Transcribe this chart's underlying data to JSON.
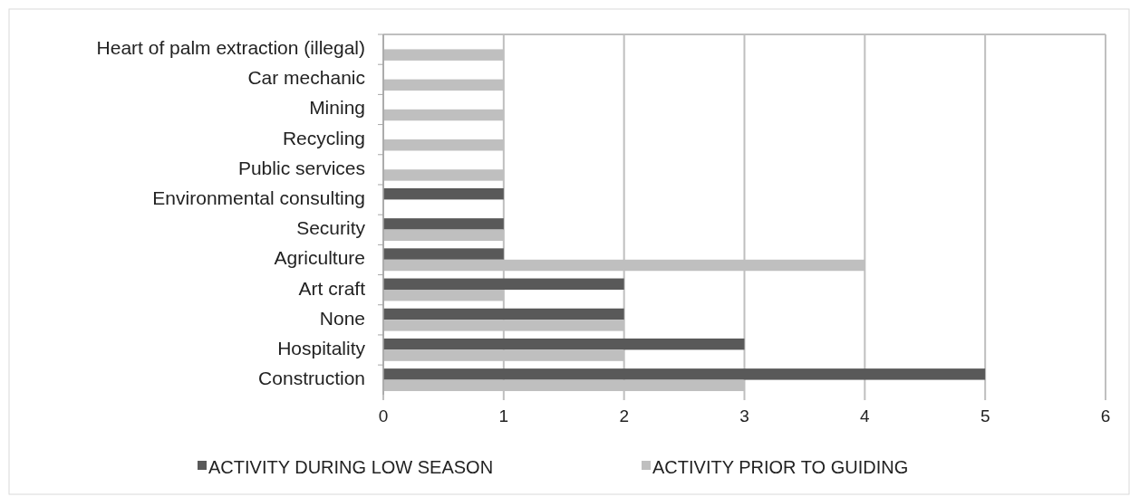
{
  "chart_data": {
    "type": "bar",
    "orientation": "horizontal",
    "categories": [
      "Heart of palm extraction (illegal)",
      "Car mechanic",
      "Mining",
      "Recycling",
      "Public services",
      "Environmental consulting",
      "Security",
      "Agriculture",
      "Art craft",
      "None",
      "Hospitality",
      "Construction"
    ],
    "series": [
      {
        "name": "ACTIVITY DURING LOW SEASON",
        "color": "#595959",
        "values": [
          null,
          null,
          null,
          null,
          null,
          1,
          1,
          1,
          2,
          2,
          3,
          5
        ]
      },
      {
        "name": "ACTIVITY PRIOR TO GUIDING",
        "color": "#bfbfbf",
        "values": [
          1,
          1,
          1,
          1,
          1,
          null,
          1,
          4,
          1,
          2,
          2,
          3
        ]
      }
    ],
    "xlim": [
      0,
      6
    ],
    "xticks": [
      0,
      1,
      2,
      3,
      4,
      5,
      6
    ],
    "grid": "x",
    "legend": "bottom"
  }
}
